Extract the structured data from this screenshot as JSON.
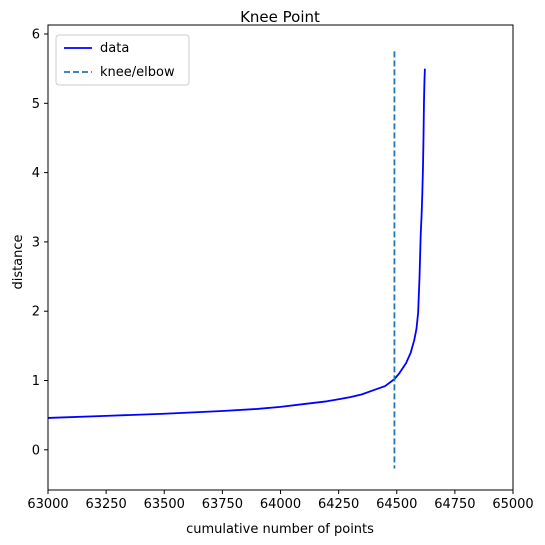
{
  "chart_data": {
    "type": "line",
    "title": "Knee Point",
    "xlabel": "cumulative number of points",
    "ylabel": "distance",
    "xlim": [
      63000,
      65000
    ],
    "ylim": [
      -0.58,
      6.13
    ],
    "x_ticks": [
      63000,
      63250,
      63500,
      63750,
      64000,
      64250,
      64500,
      64750,
      65000
    ],
    "y_ticks": [
      0,
      1,
      2,
      3,
      4,
      5,
      6
    ],
    "grid": false,
    "legend": {
      "placement": "top-left",
      "entries": [
        "data",
        "knee/elbow"
      ]
    },
    "series": [
      {
        "name": "data",
        "color": "#0000ff",
        "style": "solid",
        "x": [
          63000,
          63250,
          63500,
          63750,
          63900,
          64000,
          64100,
          64200,
          64250,
          64300,
          64350,
          64400,
          64450,
          64490,
          64510,
          64540,
          64560,
          64575,
          64585,
          64592,
          64598,
          64603,
          64607,
          64610,
          64613,
          64615,
          64617,
          64619,
          64621
        ],
        "y": [
          0.46,
          0.49,
          0.52,
          0.56,
          0.59,
          0.62,
          0.66,
          0.7,
          0.73,
          0.76,
          0.8,
          0.86,
          0.92,
          1.02,
          1.1,
          1.25,
          1.4,
          1.58,
          1.75,
          1.98,
          2.5,
          3.1,
          3.4,
          3.7,
          4.1,
          4.5,
          5.0,
          5.3,
          5.5
        ]
      }
    ],
    "vlines": [
      {
        "name": "knee/elbow",
        "x": 64490,
        "y0": -0.27,
        "y1": 5.75,
        "color": "#1f77b4",
        "style": "dashed"
      }
    ]
  }
}
